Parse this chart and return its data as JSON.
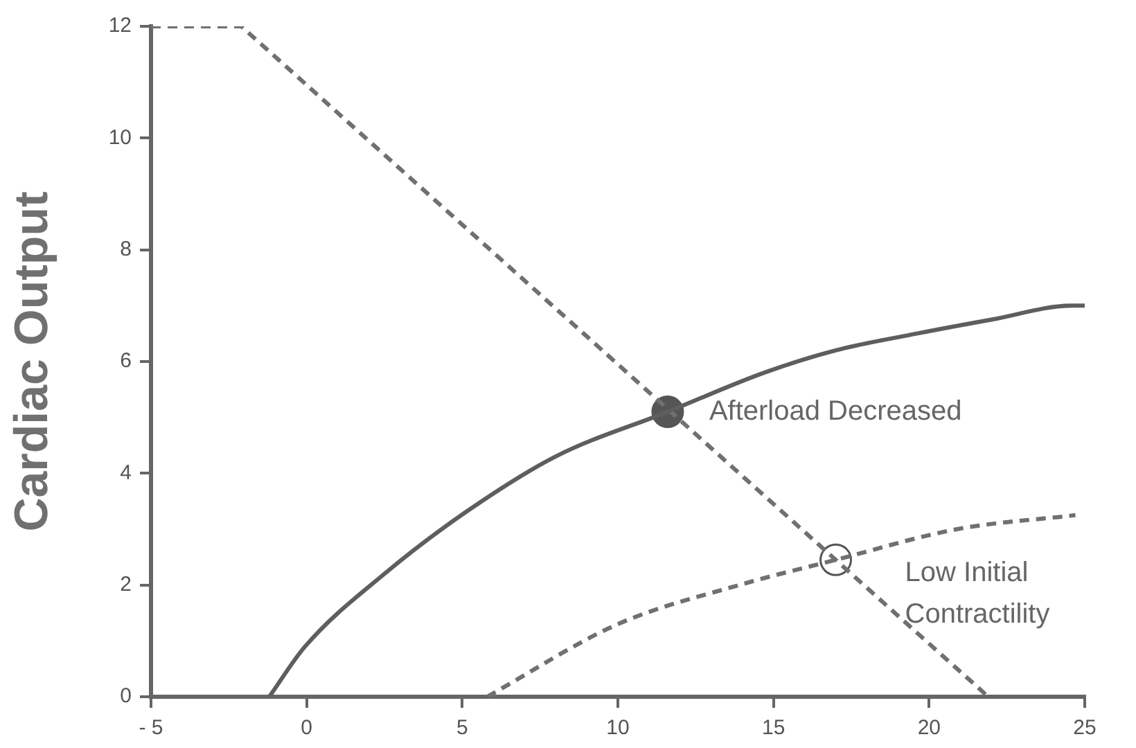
{
  "chart_data": {
    "type": "line",
    "ylabel": "Cardiac Output",
    "xlim": [
      -5,
      25
    ],
    "xticks": [
      {
        "value": -5,
        "label": "- 5"
      },
      0,
      5,
      10,
      15,
      20,
      25
    ],
    "ylim": [
      0,
      12
    ],
    "yticks": [
      0,
      2,
      4,
      6,
      8,
      10,
      12
    ],
    "grid": false,
    "legend": false,
    "series": [
      {
        "color": "#5e5e5e",
        "line_style": "solid",
        "marker": "none",
        "x": [
          -1.2,
          -0.05,
          2.5,
          5.1,
          8,
          11.6,
          14.7,
          17,
          19.6,
          22,
          24.6,
          25
        ],
        "values": [
          0,
          0.9,
          2.2,
          3.3,
          4.3,
          5.1,
          5.8,
          6.2,
          6.5,
          6.75,
          7.0,
          7.0
        ]
      },
      {
        "color": "#707070",
        "line_style": "dashed",
        "marker": "none",
        "x": [
          -5,
          -2.1,
          21.9
        ],
        "values": [
          12,
          12,
          0
        ]
      },
      {
        "color": "#707070",
        "line_style": "dashed",
        "marker": "none",
        "x": [
          5.8,
          10,
          13.9,
          17,
          20.9,
          24.7
        ],
        "values": [
          0,
          1.3,
          2.0,
          2.45,
          3.0,
          3.25
        ]
      },
      {
        "type": "scatter",
        "color": "#555555",
        "marker": "circle",
        "x": [
          11.6
        ],
        "values": [
          5.1
        ]
      },
      {
        "type": "scatter",
        "color": "#ffffff",
        "marker": "circle",
        "x": [
          17
        ],
        "values": [
          2.45
        ]
      }
    ],
    "annotations": [
      {
        "text": "Afterload Decreased",
        "x": 11.6,
        "y": 5.1
      },
      {
        "text": "Low Initial Contractility",
        "x": 17,
        "y": 2.45
      }
    ]
  }
}
